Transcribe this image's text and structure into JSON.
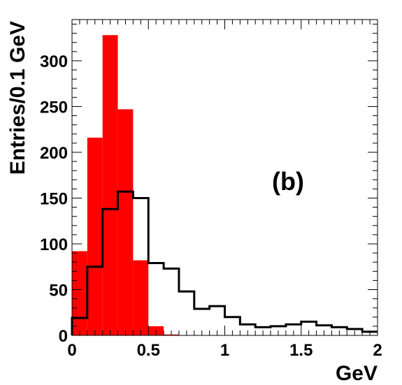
{
  "chart_data": {
    "type": "bar",
    "histogram": true,
    "title": "",
    "xlabel": "GeV",
    "ylabel": "Entries/0.1 GeV",
    "xlim": [
      0,
      2
    ],
    "ylim": [
      0,
      345
    ],
    "x_ticks": [
      "0",
      "0.5",
      "1",
      "1.5",
      "2"
    ],
    "y_ticks": [
      "0",
      "50",
      "100",
      "150",
      "200",
      "250",
      "300"
    ],
    "bin_width": 0.1,
    "bin_edges": [
      0,
      0.1,
      0.2,
      0.3,
      0.4,
      0.5,
      0.6,
      0.7,
      0.8,
      0.9,
      1.0,
      1.1,
      1.2,
      1.3,
      1.4,
      1.5,
      1.6,
      1.7,
      1.8,
      1.9,
      2.0
    ],
    "grid": false,
    "annotation": "(b)",
    "series": [
      {
        "style": "filled",
        "color": "#ff0000",
        "values": [
          92,
          216,
          328,
          247,
          82,
          10,
          1,
          0,
          0,
          0,
          0,
          0,
          0,
          0,
          0,
          0,
          0,
          0,
          0,
          0
        ]
      },
      {
        "style": "outline",
        "color": "#000000",
        "values": [
          19,
          75,
          138,
          157,
          150,
          79,
          73,
          48,
          29,
          32,
          20,
          12,
          9,
          10,
          12,
          15,
          11,
          9,
          7,
          4
        ]
      }
    ]
  }
}
